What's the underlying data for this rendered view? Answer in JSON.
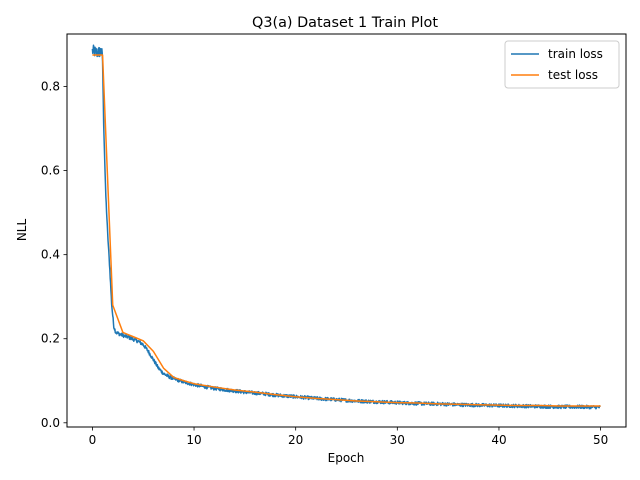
{
  "chart_data": {
    "type": "line",
    "title": "Q3(a) Dataset 1 Train Plot",
    "xlabel": "Epoch",
    "ylabel": "NLL",
    "xlim": [
      -2.5,
      52.5
    ],
    "ylim": [
      -0.01,
      0.925
    ],
    "xticks": [
      0,
      10,
      20,
      30,
      40,
      50
    ],
    "yticks": [
      0.0,
      0.2,
      0.4,
      0.6,
      0.8
    ],
    "ytick_labels": [
      "0.0",
      "0.2",
      "0.4",
      "0.6",
      "0.8"
    ],
    "grid": false,
    "legend_position": "top-right",
    "series": [
      {
        "name": "train loss",
        "color": "#1f77b4",
        "noise": 0.004,
        "x": [
          0,
          0.5,
          0.9,
          1.0,
          1.1,
          1.3,
          1.5,
          1.7,
          1.9,
          2.1,
          2.3,
          2.6,
          3,
          3.5,
          4,
          4.5,
          5,
          5.5,
          6,
          6.5,
          7,
          7.5,
          8,
          9,
          10,
          11,
          12,
          13,
          14,
          15,
          16,
          17,
          18,
          19,
          20,
          22,
          24,
          26,
          28,
          30,
          32,
          34,
          36,
          38,
          40,
          42,
          44,
          46,
          48,
          50
        ],
        "y": [
          0.885,
          0.88,
          0.885,
          0.86,
          0.72,
          0.55,
          0.45,
          0.37,
          0.28,
          0.23,
          0.215,
          0.212,
          0.208,
          0.204,
          0.199,
          0.194,
          0.186,
          0.17,
          0.15,
          0.13,
          0.117,
          0.11,
          0.105,
          0.097,
          0.091,
          0.086,
          0.082,
          0.079,
          0.076,
          0.073,
          0.071,
          0.069,
          0.066,
          0.064,
          0.062,
          0.058,
          0.055,
          0.052,
          0.05,
          0.048,
          0.046,
          0.045,
          0.043,
          0.042,
          0.041,
          0.04,
          0.039,
          0.038,
          0.038,
          0.037
        ]
      },
      {
        "name": "test loss",
        "color": "#ff7f0e",
        "noise": 0,
        "x": [
          0,
          1,
          2,
          3,
          4,
          5,
          6,
          7,
          8,
          9,
          10,
          12,
          14,
          16,
          18,
          20,
          22,
          24,
          26,
          28,
          30,
          32,
          34,
          36,
          38,
          40,
          42,
          44,
          46,
          48,
          50
        ],
        "y": [
          0.875,
          0.875,
          0.28,
          0.215,
          0.205,
          0.195,
          0.17,
          0.13,
          0.108,
          0.1,
          0.093,
          0.085,
          0.078,
          0.073,
          0.067,
          0.062,
          0.058,
          0.055,
          0.052,
          0.05,
          0.048,
          0.047,
          0.045,
          0.044,
          0.043,
          0.042,
          0.041,
          0.041,
          0.04,
          0.04,
          0.04
        ]
      }
    ]
  }
}
